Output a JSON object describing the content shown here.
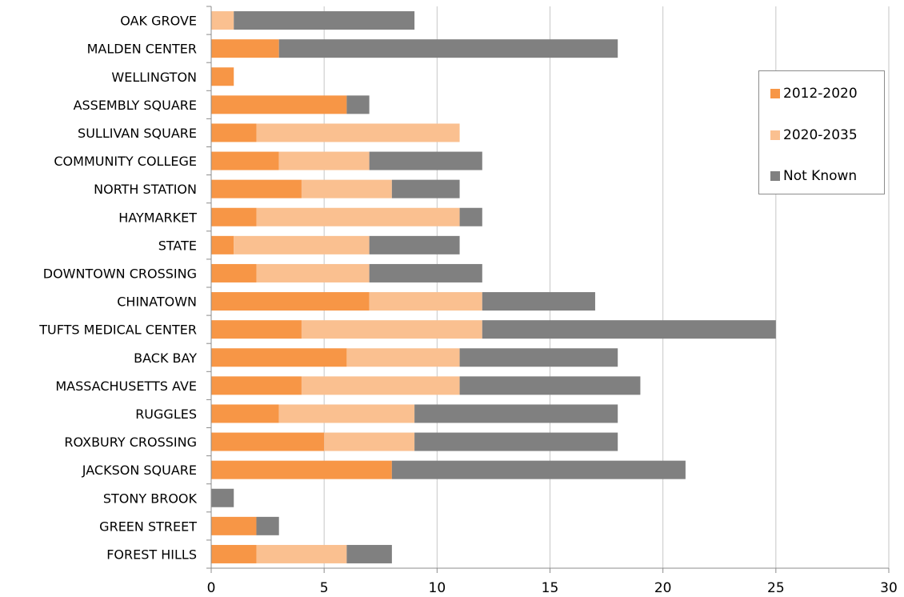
{
  "chart_data": {
    "type": "bar",
    "orientation": "horizontal",
    "stacked": true,
    "categories": [
      "OAK GROVE",
      "MALDEN CENTER",
      "WELLINGTON",
      "ASSEMBLY SQUARE",
      "SULLIVAN SQUARE",
      "COMMUNITY COLLEGE",
      "NORTH STATION",
      "HAYMARKET",
      "STATE",
      "DOWNTOWN CROSSING",
      "CHINATOWN",
      "TUFTS MEDICAL CENTER",
      "BACK BAY",
      "MASSACHUSETTS AVE",
      "RUGGLES",
      "ROXBURY CROSSING",
      "JACKSON SQUARE",
      "STONY BROOK",
      "GREEN STREET",
      "FOREST HILLS"
    ],
    "series": [
      {
        "name": "2012-2020",
        "color": "#F79646",
        "values": [
          0,
          3,
          1,
          6,
          2,
          3,
          4,
          2,
          1,
          2,
          7,
          4,
          6,
          4,
          3,
          5,
          8,
          0,
          2,
          2
        ]
      },
      {
        "name": "2020-2035",
        "color": "#FAC090",
        "values": [
          1,
          0,
          0,
          0,
          9,
          4,
          4,
          9,
          6,
          5,
          5,
          8,
          5,
          7,
          6,
          4,
          0,
          0,
          0,
          4
        ]
      },
      {
        "name": "Not Known",
        "color": "#808080",
        "values": [
          8,
          15,
          0,
          1,
          0,
          5,
          3,
          1,
          4,
          5,
          5,
          13,
          7,
          8,
          9,
          9,
          13,
          1,
          1,
          2
        ]
      }
    ],
    "xlim": [
      0,
      30
    ],
    "xticks": [
      "0",
      "5",
      "10",
      "15",
      "20",
      "25",
      "30"
    ],
    "grid": true,
    "legend_position": "right",
    "title": "",
    "xlabel": "",
    "ylabel": ""
  }
}
